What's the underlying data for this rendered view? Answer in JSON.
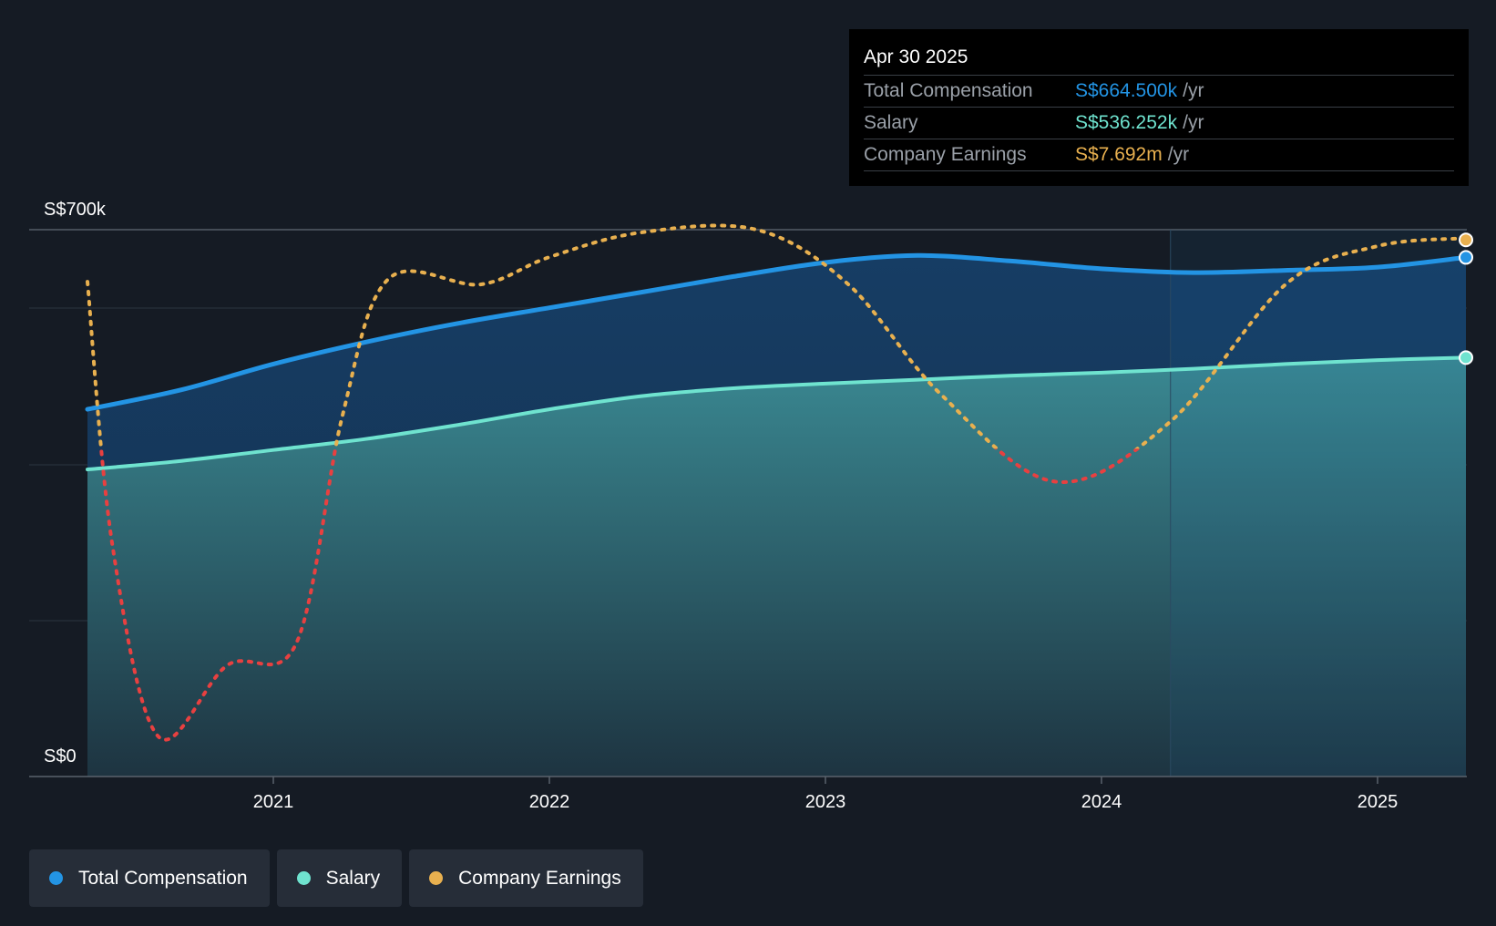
{
  "chart_data": {
    "type": "line",
    "y_axis": {
      "top_label": "S$700k",
      "bottom_label": "S$0",
      "ylim": [
        0,
        700
      ]
    },
    "x_ticks": [
      "2021",
      "2022",
      "2023",
      "2024",
      "2025"
    ],
    "series": [
      {
        "name": "Total Compensation",
        "color": "#2394e4",
        "unit": "S$k",
        "points": [
          [
            "2020-05",
            470
          ],
          [
            "2020-09",
            495
          ],
          [
            "2021-01",
            528
          ],
          [
            "2021-05",
            556
          ],
          [
            "2021-09",
            580
          ],
          [
            "2022-01",
            600
          ],
          [
            "2022-05",
            620
          ],
          [
            "2022-09",
            640
          ],
          [
            "2023-01",
            658
          ],
          [
            "2023-05",
            667
          ],
          [
            "2023-09",
            660
          ],
          [
            "2024-01",
            650
          ],
          [
            "2024-05",
            645
          ],
          [
            "2024-09",
            648
          ],
          [
            "2025-01",
            652
          ],
          [
            "2025-04",
            664.5
          ]
        ]
      },
      {
        "name": "Salary",
        "color": "#6fe3cf",
        "unit": "S$k",
        "points": [
          [
            "2020-05",
            393
          ],
          [
            "2020-09",
            404
          ],
          [
            "2021-01",
            418
          ],
          [
            "2021-05",
            432
          ],
          [
            "2021-09",
            450
          ],
          [
            "2022-01",
            470
          ],
          [
            "2022-05",
            487
          ],
          [
            "2022-09",
            497
          ],
          [
            "2023-01",
            503
          ],
          [
            "2023-05",
            508
          ],
          [
            "2023-09",
            513
          ],
          [
            "2024-01",
            517
          ],
          [
            "2024-05",
            522
          ],
          [
            "2024-09",
            528
          ],
          [
            "2025-01",
            533
          ],
          [
            "2025-04",
            536.252
          ]
        ]
      },
      {
        "name": "Company Earnings",
        "color": "#e8b04f",
        "negative_color": "#e84040",
        "unit": "S$m",
        "points": [
          [
            "2020-05",
            6.1
          ],
          [
            "2020-06",
            -3.5
          ],
          [
            "2020-08",
            -10.5
          ],
          [
            "2020-11",
            -7.9
          ],
          [
            "2021-02",
            -7.1
          ],
          [
            "2021-04",
            1.2
          ],
          [
            "2021-06",
            6.2
          ],
          [
            "2021-10",
            6.0
          ],
          [
            "2022-01",
            7.0
          ],
          [
            "2022-05",
            7.9
          ],
          [
            "2022-10",
            8.0
          ],
          [
            "2023-02",
            6.0
          ],
          [
            "2023-06",
            2.0
          ],
          [
            "2023-11",
            -1.2
          ],
          [
            "2024-04",
            1.0
          ],
          [
            "2024-09",
            6.0
          ],
          [
            "2025-01",
            7.4
          ],
          [
            "2025-04",
            7.692
          ]
        ]
      }
    ],
    "grid": true,
    "forecast_shade_from": "2024-04"
  },
  "tooltip": {
    "date": "Apr 30 2025",
    "rows": [
      {
        "label": "Total Compensation",
        "value": "S$664.500k",
        "unit": "/yr",
        "color": "#2394e4"
      },
      {
        "label": "Salary",
        "value": "S$536.252k",
        "unit": "/yr",
        "color": "#6fe3cf"
      },
      {
        "label": "Company Earnings",
        "value": "S$7.692m",
        "unit": "/yr",
        "color": "#e8b04f"
      }
    ]
  },
  "legend": [
    {
      "label": "Total Compensation",
      "color": "#2394e4"
    },
    {
      "label": "Salary",
      "color": "#6fe3cf"
    },
    {
      "label": "Company Earnings",
      "color": "#e8b04f"
    }
  ]
}
